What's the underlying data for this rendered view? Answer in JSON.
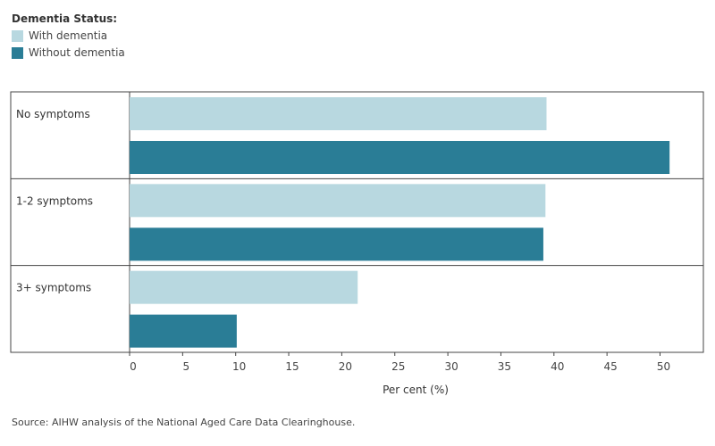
{
  "legend": {
    "title": "Dementia Status:",
    "items": [
      {
        "label": "With dementia",
        "color": "#b8d8e0"
      },
      {
        "label": "Without dementia",
        "color": "#2a7d96"
      }
    ]
  },
  "source": "Source: AIHW analysis of the National Aged Care Data Clearinghouse.",
  "chart_data": {
    "type": "bar",
    "orientation": "horizontal",
    "categories": [
      "No symptoms",
      "1-2 symptoms",
      "3+ symptoms"
    ],
    "series": [
      {
        "name": "With dementia",
        "color": "#b8d8e0",
        "values": [
          39.3,
          39.2,
          21.5
        ]
      },
      {
        "name": "Without dementia",
        "color": "#2a7d96",
        "values": [
          50.9,
          39.0,
          10.1
        ]
      }
    ],
    "xlabel": "Per cent (%)",
    "xlim": [
      0,
      53
    ],
    "xticks": [
      0,
      5,
      10,
      15,
      20,
      25,
      30,
      35,
      40,
      45,
      50
    ],
    "grid": false,
    "legend_position": "top-left"
  }
}
